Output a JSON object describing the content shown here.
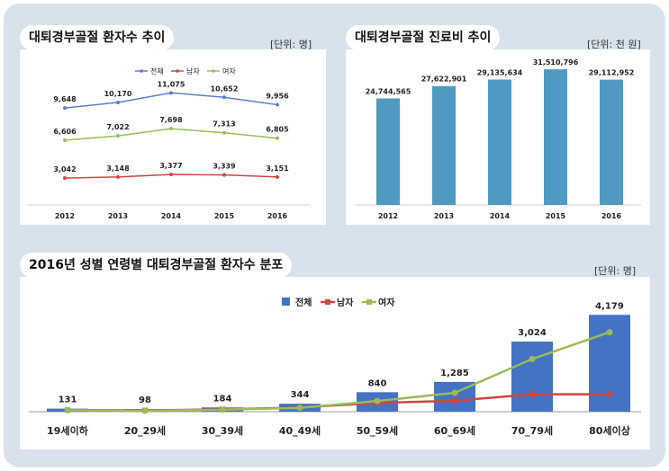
{
  "colors": {
    "background": "#d7e2ec",
    "total": "#5b7fc7",
    "male": "#d0453f",
    "female": "#9bbb59",
    "bar_top": "#4f9ac0",
    "bar_dist": "#4472c4"
  },
  "chart_data": [
    {
      "type": "line",
      "title": "대퇴경부골절 환자수 추이",
      "unit": "[단위: 명]",
      "categories": [
        "2012",
        "2013",
        "2014",
        "2015",
        "2016"
      ],
      "series": [
        {
          "name": "전체",
          "values": [
            9648,
            10170,
            11075,
            10652,
            9956
          ],
          "labels": [
            "9,648",
            "10,170",
            "11,075",
            "10,652",
            "9,956"
          ]
        },
        {
          "name": "남자",
          "values": [
            3042,
            3148,
            3377,
            3339,
            3151
          ],
          "labels": [
            "3,042",
            "3,148",
            "3,377",
            "3,339",
            "3,151"
          ]
        },
        {
          "name": "여자",
          "values": [
            6606,
            7022,
            7698,
            7313,
            6805
          ],
          "labels": [
            "6,606",
            "7,022",
            "7,698",
            "7,313",
            "6,805"
          ]
        }
      ],
      "ylim": [
        0,
        12000
      ],
      "legend": "top"
    },
    {
      "type": "bar",
      "title": "대퇴경부골절 진료비 추이",
      "unit": "[단위: 천 원]",
      "categories": [
        "2012",
        "2013",
        "2014",
        "2015",
        "2016"
      ],
      "values": [
        24744565,
        27622901,
        29135634,
        31510796,
        29112952
      ],
      "labels": [
        "24,744,565",
        "27,622,901",
        "29,135,634",
        "31,510,796",
        "29,112,952"
      ],
      "ylim": [
        0,
        33000000
      ]
    },
    {
      "type": "bar",
      "title": "2016년 성별 연령별 대퇴경부골절 환자수 분포",
      "unit": "[단위: 명]",
      "categories": [
        "19세이하",
        "20_29세",
        "30_39세",
        "40_49세",
        "50_59세",
        "60_69세",
        "70_79세",
        "80세이상"
      ],
      "series": [
        {
          "name": "전체",
          "type": "bar",
          "values": [
            131,
            98,
            184,
            344,
            840,
            1285,
            3024,
            4179
          ],
          "labels": [
            "131",
            "98",
            "184",
            "344",
            "840",
            "1,285",
            "3,024",
            "4,179"
          ]
        },
        {
          "name": "남자",
          "type": "line",
          "values": [
            70,
            55,
            100,
            180,
            380,
            470,
            750,
            750
          ]
        },
        {
          "name": "여자",
          "type": "line",
          "values": [
            61,
            43,
            84,
            164,
            460,
            815,
            2274,
            3429
          ]
        }
      ],
      "ylim": [
        0,
        4500
      ],
      "legend": "top"
    }
  ]
}
